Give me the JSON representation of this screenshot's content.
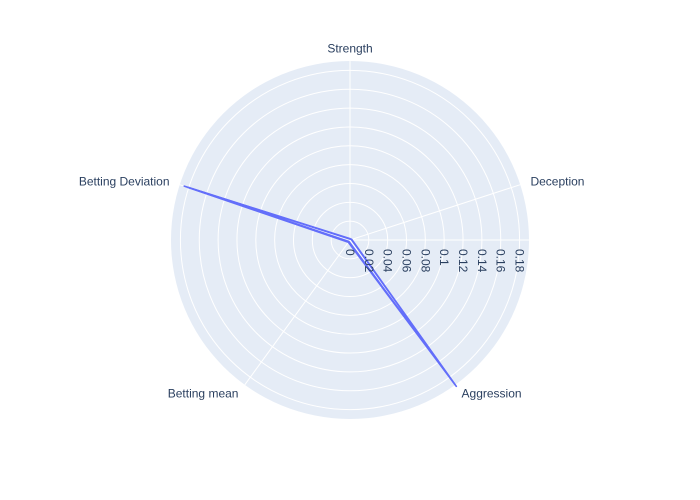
{
  "chart_data": {
    "type": "radar",
    "title": "",
    "axes": [
      "Strength",
      "Deception",
      "Aggression",
      "Betting mean",
      "Betting Deviation"
    ],
    "radial_range": [
      0,
      0.19
    ],
    "radial_ticks": [
      0,
      0.02,
      0.04,
      0.06,
      0.08,
      0.1,
      0.12,
      0.14,
      0.16,
      0.18
    ],
    "radial_tick_labels": [
      "0",
      "0.02",
      "0.04",
      "0.06",
      "0.08",
      "0.1",
      "0.12",
      "0.14",
      "0.16",
      "0.18"
    ],
    "series": [
      {
        "values": [
          0.0015,
          0.002,
          0.192,
          0.003,
          0.185
        ]
      },
      {
        "values": [
          0.001,
          0.0015,
          0.19,
          0.002,
          0.181
        ]
      }
    ],
    "grid": true,
    "legend": "none",
    "colors": {
      "polar_background": "#e5ecf6",
      "grid": "#ffffff",
      "line": "#636efa",
      "text": "#2a3f5f"
    }
  }
}
